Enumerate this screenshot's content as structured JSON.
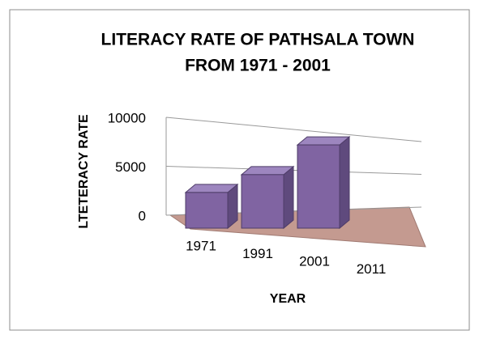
{
  "chart_data": {
    "type": "bar3d",
    "title": [
      "LITERACY RATE OF PATHSALA TOWN",
      "FROM 1971 - 2001"
    ],
    "x_label": "YEAR",
    "y_label": "LTETERACY RATE",
    "categories": [
      "1971",
      "1991",
      "2001",
      "2011"
    ],
    "values": [
      3000,
      4500,
      7000,
      null
    ],
    "color": "#8064a2",
    "floor_color": "#c49a90",
    "ylim": [
      0,
      10000
    ],
    "yticks": [
      0,
      5000,
      10000
    ],
    "grid": true
  }
}
